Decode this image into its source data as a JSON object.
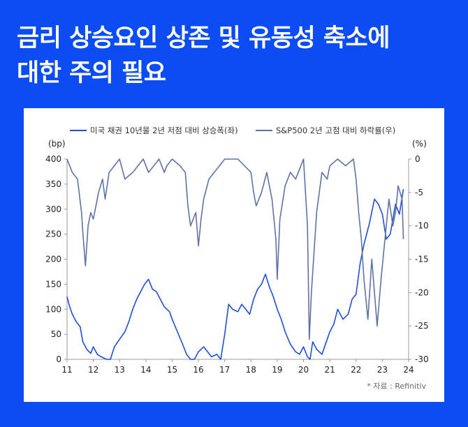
{
  "title": {
    "line1": "금리 상승요인 상존 및 유동성 축소에",
    "line2": "대한 주의 필요"
  },
  "source": "* 자료 : Refinitiv",
  "chart_data": {
    "type": "line",
    "title": "",
    "y_left_unit": "(bp)",
    "y_right_unit": "(%)",
    "x_ticks": [
      "11",
      "12",
      "13",
      "14",
      "15",
      "16",
      "17",
      "18",
      "19",
      "20",
      "21",
      "22",
      "23",
      "24"
    ],
    "y_left_ticks": [
      "400",
      "350",
      "300",
      "250",
      "200",
      "150",
      "100",
      "50",
      "0"
    ],
    "y_right_ticks": [
      "0",
      "-5",
      "-10",
      "-15",
      "-20",
      "-25",
      "-30"
    ],
    "ylim_left": [
      0,
      400
    ],
    "ylim_right": [
      -30,
      0
    ],
    "xlim": [
      2011,
      2024
    ],
    "legend_position": "top",
    "colors": {
      "series1": "#1f4fd8",
      "series2": "#5f72a8",
      "axis": "#999999",
      "background": "#0b4cf5"
    },
    "series": [
      {
        "name": "미국 채권 10년물 2년 저점 대비 상승폭(좌)",
        "axis": "left",
        "x": [
          2011.0,
          2011.1,
          2011.2,
          2011.35,
          2011.5,
          2011.6,
          2011.75,
          2011.9,
          2012.0,
          2012.15,
          2012.3,
          2012.5,
          2012.65,
          2012.8,
          2013.0,
          2013.2,
          2013.35,
          2013.5,
          2013.65,
          2013.8,
          2013.95,
          2014.1,
          2014.25,
          2014.4,
          2014.55,
          2014.7,
          2014.9,
          2015.0,
          2015.2,
          2015.4,
          2015.55,
          2015.7,
          2015.85,
          2016.0,
          2016.2,
          2016.35,
          2016.5,
          2016.7,
          2016.85,
          2017.0,
          2017.15,
          2017.3,
          2017.5,
          2017.65,
          2017.8,
          2017.95,
          2018.1,
          2018.25,
          2018.4,
          2018.55,
          2018.7,
          2018.85,
          2019.0,
          2019.15,
          2019.3,
          2019.5,
          2019.7,
          2019.85,
          2020.0,
          2020.15,
          2020.25,
          2020.35,
          2020.5,
          2020.7,
          2020.9,
          2021.0,
          2021.15,
          2021.3,
          2021.5,
          2021.7,
          2021.85,
          2022.0,
          2022.15,
          2022.3,
          2022.5,
          2022.7,
          2022.85,
          2023.0,
          2023.15,
          2023.3,
          2023.5,
          2023.65,
          2023.8
        ],
        "values": [
          125,
          105,
          90,
          75,
          65,
          35,
          20,
          12,
          25,
          10,
          5,
          0,
          0,
          25,
          40,
          55,
          75,
          100,
          120,
          135,
          150,
          160,
          140,
          135,
          120,
          105,
          95,
          80,
          55,
          30,
          10,
          0,
          0,
          15,
          25,
          15,
          5,
          10,
          0,
          50,
          110,
          100,
          95,
          110,
          100,
          90,
          120,
          140,
          150,
          170,
          145,
          125,
          100,
          80,
          55,
          30,
          15,
          10,
          25,
          5,
          0,
          35,
          20,
          10,
          40,
          55,
          70,
          100,
          80,
          90,
          120,
          130,
          190,
          230,
          270,
          320,
          310,
          290,
          240,
          250,
          310,
          290,
          340
        ]
      },
      {
        "name": "S&P500 2년 고점 대비 하락률(우)",
        "axis": "right",
        "x": [
          2011.0,
          2011.2,
          2011.4,
          2011.55,
          2011.6,
          2011.7,
          2011.8,
          2011.9,
          2012.0,
          2012.2,
          2012.35,
          2012.45,
          2012.6,
          2012.8,
          2013.0,
          2013.2,
          2013.5,
          2013.7,
          2013.9,
          2014.1,
          2014.3,
          2014.5,
          2014.7,
          2014.8,
          2015.0,
          2015.3,
          2015.5,
          2015.6,
          2015.7,
          2015.9,
          2016.0,
          2016.1,
          2016.2,
          2016.4,
          2016.6,
          2016.8,
          2017.0,
          2017.5,
          2018.0,
          2018.1,
          2018.2,
          2018.4,
          2018.6,
          2018.8,
          2018.95,
          2019.0,
          2019.1,
          2019.3,
          2019.5,
          2019.7,
          2019.9,
          2020.0,
          2020.15,
          2020.22,
          2020.3,
          2020.5,
          2020.7,
          2020.9,
          2021.0,
          2021.3,
          2021.6,
          2021.9,
          2022.0,
          2022.1,
          2022.2,
          2022.3,
          2022.45,
          2022.6,
          2022.7,
          2022.8,
          2022.95,
          2023.1,
          2023.25,
          2023.4,
          2023.5,
          2023.6,
          2023.75,
          2023.8
        ],
        "values": [
          0,
          -2,
          -3,
          -8,
          -11,
          -16,
          -10,
          -8,
          -9,
          -5,
          -3,
          -6,
          -2,
          -1,
          0,
          -3,
          -2,
          -1,
          0,
          -2,
          -1,
          0,
          -2,
          -1,
          0,
          -1,
          -2,
          -7,
          -10,
          -8,
          -13,
          -9,
          -6,
          -3,
          -2,
          -1,
          0,
          0,
          -2,
          -5,
          -7,
          -5,
          -2,
          -6,
          -12,
          -18,
          -9,
          -4,
          -2,
          -3,
          -1,
          0,
          -10,
          -27,
          -20,
          -8,
          -2,
          -3,
          -1,
          0,
          -1,
          0,
          -3,
          -8,
          -12,
          -18,
          -24,
          -15,
          -20,
          -25,
          -18,
          -12,
          -6,
          -10,
          -8,
          -4,
          -6,
          -12
        ]
      }
    ]
  }
}
